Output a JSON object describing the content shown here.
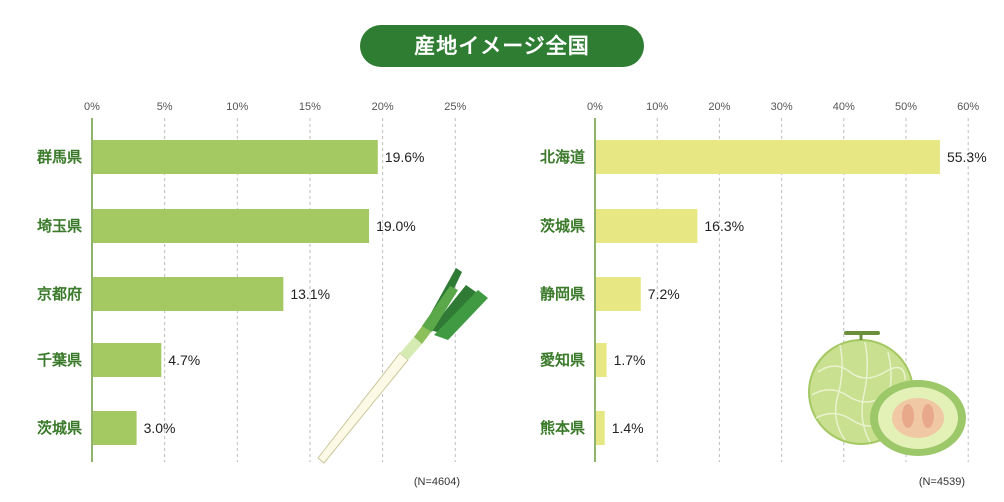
{
  "title": "産地イメージ全国",
  "colors": {
    "title_bg": "#2e7d32",
    "left_bar": "#a4c862",
    "right_bar": "#e7e783",
    "label_green": "#3a7a2a"
  },
  "chart_data": [
    {
      "type": "bar",
      "orientation": "horizontal",
      "title": "ネギ",
      "categories": [
        "群馬県",
        "埼玉県",
        "京都府",
        "千葉県",
        "茨城県"
      ],
      "values": [
        19.6,
        19.0,
        13.1,
        4.7,
        3.0
      ],
      "value_labels": [
        "19.6%",
        "19.0%",
        "13.1%",
        "4.7%",
        "3.0%"
      ],
      "xlim": [
        0,
        25
      ],
      "ticks": [
        0,
        5,
        10,
        15,
        20,
        25
      ],
      "tick_labels": [
        "0%",
        "5%",
        "10%",
        "15%",
        "20%",
        "25%"
      ],
      "note": "(N=4604)"
    },
    {
      "type": "bar",
      "orientation": "horizontal",
      "title": "メロン",
      "categories": [
        "北海道",
        "茨城県",
        "静岡県",
        "愛知県",
        "熊本県"
      ],
      "values": [
        55.3,
        16.3,
        7.2,
        1.7,
        1.4
      ],
      "value_labels": [
        "55.3%",
        "16.3%",
        "7.2%",
        "1.7%",
        "1.4%"
      ],
      "xlim": [
        0,
        60
      ],
      "ticks": [
        0,
        10,
        20,
        30,
        40,
        50,
        60
      ],
      "tick_labels": [
        "0%",
        "10%",
        "20%",
        "30%",
        "40%",
        "50%",
        "60%"
      ],
      "note": "(N=4539)"
    }
  ]
}
